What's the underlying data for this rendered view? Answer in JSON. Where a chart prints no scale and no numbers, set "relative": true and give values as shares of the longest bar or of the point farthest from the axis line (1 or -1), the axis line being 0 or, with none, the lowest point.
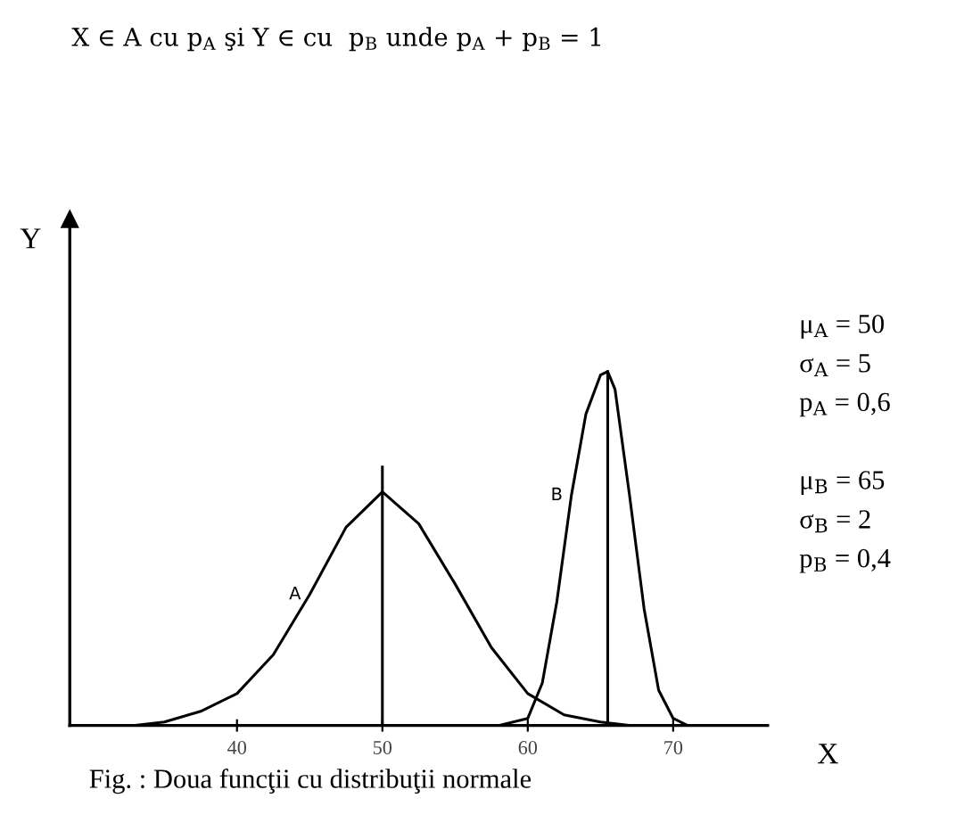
{
  "chart_data": {
    "type": "line",
    "title": "X ∈ A cu p$_{A}$ şi Y ∈ cu  p$_{B}$ unde p$_{A}$ + p$_{B}$ = 1",
    "xlabel": "X",
    "ylabel": "Y",
    "relative": true,
    "xlim": [
      28.5,
      76.5
    ],
    "xticks": [
      40,
      50,
      60,
      70
    ],
    "tick_labels": "x",
    "grid": false,
    "legend": false,
    "marker": "none",
    "line_style": "solid",
    "series": [
      {
        "name": "A",
        "color": "#000000",
        "x": [
          33,
          35,
          37.5,
          40,
          42.5,
          45,
          47.5,
          50,
          52.5,
          55,
          57.5,
          60,
          62.5,
          65,
          67
        ],
        "values": [
          0,
          0.01,
          0.04,
          0.09,
          0.2,
          0.37,
          0.56,
          0.66,
          0.57,
          0.4,
          0.22,
          0.09,
          0.03,
          0.01,
          0
        ]
      },
      {
        "name": "B",
        "color": "#000000",
        "x": [
          58,
          60,
          61,
          62,
          63,
          64,
          65,
          65.5,
          66,
          67,
          68,
          69,
          70,
          71
        ],
        "values": [
          0,
          0.02,
          0.12,
          0.35,
          0.65,
          0.88,
          0.99,
          1,
          0.95,
          0.65,
          0.33,
          0.1,
          0.02,
          0
        ]
      }
    ],
    "ref_lines": [
      {
        "axis": "x",
        "value": 50,
        "color": "#000000"
      },
      {
        "axis": "x",
        "value": 65.5,
        "color": "#000000"
      }
    ],
    "annotations": [
      "μ$_{A}$ = 50",
      "σ$_{A}$ = 5",
      "p$_{A}$ = 0,6",
      "μ$_{B}$ = 65",
      "σ$_{B}$ = 2",
      "p$_{B}$ = 0,4",
      "Fig. : Doua funcţii cu distribuţii normale"
    ]
  }
}
